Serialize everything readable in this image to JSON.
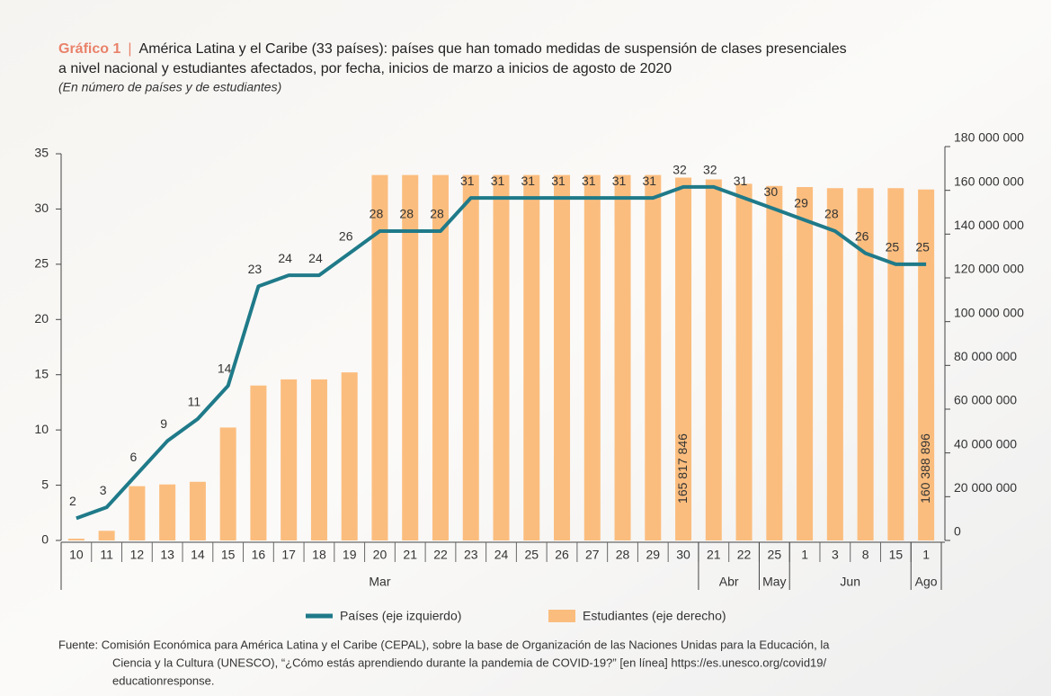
{
  "chart_data": {
    "type": "combo",
    "figure_label": "Gráfico 1",
    "title": "América Latina y el Caribe (33 países): países que han tomado medidas de suspensión de clases presenciales a nivel nacional y estudiantes afectados, por fecha, inicios de marzo a inicios de agosto de 2020",
    "subtitle": "(En número de países y de estudiantes)",
    "categories": [
      "10",
      "11",
      "12",
      "13",
      "14",
      "15",
      "16",
      "17",
      "18",
      "19",
      "20",
      "21",
      "22",
      "23",
      "24",
      "25",
      "26",
      "27",
      "28",
      "29",
      "30",
      "21",
      "22",
      "25",
      "1",
      "3",
      "8",
      "15",
      "1"
    ],
    "x_groups": [
      {
        "label": "Mar",
        "count": 21
      },
      {
        "label": "Abr",
        "count": 2
      },
      {
        "label": "May",
        "count": 1
      },
      {
        "label": "Jun",
        "count": 4
      },
      {
        "label": "Ago",
        "count": 1
      }
    ],
    "series": [
      {
        "name": "Estudiantes (eje derecho)",
        "type": "bar",
        "axis": "y2",
        "color": "#fbbd7e",
        "values": [
          800000,
          4400000,
          24800000,
          25600000,
          26800000,
          51600000,
          70800000,
          73600000,
          73600000,
          76800000,
          167000000,
          167000000,
          167000000,
          167000000,
          167000000,
          167000000,
          167000000,
          167000000,
          167000000,
          167000000,
          165817846,
          165000000,
          163000000,
          162000000,
          161500000,
          161000000,
          161000000,
          161000000,
          160388896
        ],
        "value_labels": [
          null,
          null,
          null,
          null,
          null,
          null,
          null,
          null,
          null,
          null,
          null,
          null,
          null,
          null,
          null,
          null,
          null,
          null,
          null,
          null,
          "165 817 846",
          null,
          null,
          null,
          null,
          null,
          null,
          null,
          "160 388 896"
        ]
      },
      {
        "name": "Países (eje izquierdo)",
        "type": "line",
        "color": "#1f7a89",
        "values": [
          2,
          3,
          6,
          9,
          11,
          14,
          23,
          24,
          24,
          26,
          28,
          28,
          28,
          31,
          31,
          31,
          31,
          31,
          31,
          31,
          32,
          32,
          31,
          30,
          29,
          28,
          26,
          25,
          25
        ]
      }
    ],
    "ylim": [
      0,
      35
    ],
    "yticks": [
      0,
      5,
      10,
      15,
      20,
      25,
      30,
      35
    ],
    "y2lim": [
      0,
      180000000
    ],
    "y2ticks": [
      {
        "value": 0,
        "label": "0"
      },
      {
        "value": 20000000,
        "label": "20 000 000"
      },
      {
        "value": 40000000,
        "label": "40 000 000"
      },
      {
        "value": 60000000,
        "label": "60 000 000"
      },
      {
        "value": 80000000,
        "label": "80 000 000"
      },
      {
        "value": 100000000,
        "label": "100 000 000"
      },
      {
        "value": 120000000,
        "label": "120 000 000"
      },
      {
        "value": 140000000,
        "label": "140 000 000"
      },
      {
        "value": 160000000,
        "label": "160 000 000"
      },
      {
        "value": 180000000,
        "label": "180 000 000"
      }
    ],
    "grid": false,
    "source": [
      "Fuente: Comisión Económica para América Latina y el Caribe (CEPAL), sobre la base de Organización de las Naciones Unidas para la Educación, la",
      "Ciencia y la Cultura (UNESCO), “¿Cómo estás aprendiendo durante la pandemia de COVID-19?” [en línea] https://es.unesco.org/covid19/",
      "educationresponse."
    ]
  }
}
